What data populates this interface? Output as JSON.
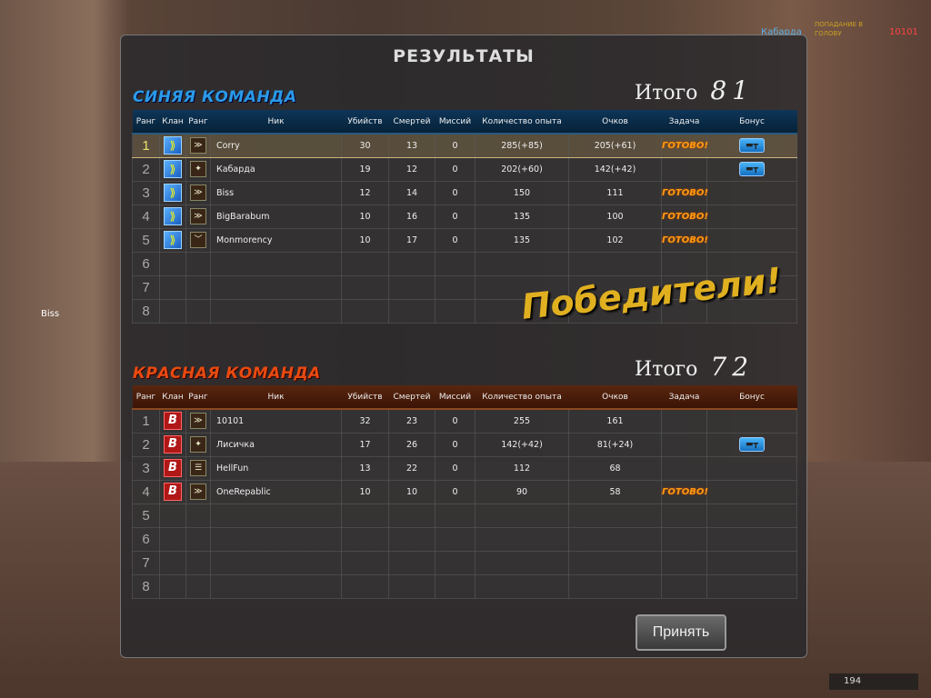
{
  "killfeed": {
    "killer": "Кабарда",
    "headshot": "ПОПАДАНИЕ В ГОЛОВУ",
    "victim": "10101"
  },
  "side_name": "Biss",
  "title": "РЕЗУЛЬТАТЫ",
  "columns": [
    "Ранг",
    "Клан",
    "Ранг",
    "Ник",
    "Убийств",
    "Смертей",
    "Миссий",
    "Количество опыта",
    "Очков",
    "Задача",
    "Бонус"
  ],
  "blue": {
    "name": "СИНЯЯ КОМАНДА",
    "total_label": "Итого",
    "total": "81",
    "color": "#2a9ae8",
    "rows": [
      {
        "n": "1",
        "rank": "≫",
        "nick": "Corry",
        "kills": "30",
        "deaths": "13",
        "missions": "0",
        "exp": "285(+85)",
        "score": "205(+61)",
        "task": "ГОТОВО!",
        "bonus": true
      },
      {
        "n": "2",
        "rank": "✦",
        "nick": "Кабарда",
        "kills": "19",
        "deaths": "12",
        "missions": "0",
        "exp": "202(+60)",
        "score": "142(+42)",
        "task": "",
        "bonus": true
      },
      {
        "n": "3",
        "rank": "≫",
        "nick": "Biss",
        "kills": "12",
        "deaths": "14",
        "missions": "0",
        "exp": "150",
        "score": "111",
        "task": "ГОТОВО!",
        "bonus": false
      },
      {
        "n": "4",
        "rank": "≫",
        "nick": "BigBarabum",
        "kills": "10",
        "deaths": "16",
        "missions": "0",
        "exp": "135",
        "score": "100",
        "task": "ГОТОВО!",
        "bonus": false
      },
      {
        "n": "5",
        "rank": "﹀",
        "nick": "Monmorency",
        "kills": "10",
        "deaths": "17",
        "missions": "0",
        "exp": "135",
        "score": "102",
        "task": "ГОТОВО!",
        "bonus": false
      },
      {
        "n": "6"
      },
      {
        "n": "7"
      },
      {
        "n": "8"
      }
    ]
  },
  "red": {
    "name": "КРАСНАЯ КОМАНДА",
    "total_label": "Итого",
    "total": "72",
    "color": "#e84a10",
    "rows": [
      {
        "n": "1",
        "rank": "≫",
        "nick": "10101",
        "kills": "32",
        "deaths": "23",
        "missions": "0",
        "exp": "255",
        "score": "161",
        "task": "",
        "bonus": false
      },
      {
        "n": "2",
        "rank": "✦",
        "nick": "Лисичка",
        "kills": "17",
        "deaths": "26",
        "missions": "0",
        "exp": "142(+42)",
        "score": "81(+24)",
        "task": "",
        "bonus": true
      },
      {
        "n": "3",
        "rank": "☰",
        "nick": "HellFun",
        "kills": "13",
        "deaths": "22",
        "missions": "0",
        "exp": "112",
        "score": "68",
        "task": "",
        "bonus": false
      },
      {
        "n": "4",
        "rank": "≫",
        "nick": "OneRepablic",
        "kills": "10",
        "deaths": "10",
        "missions": "0",
        "exp": "90",
        "score": "58",
        "task": "ГОТОВО!",
        "bonus": false
      },
      {
        "n": "5"
      },
      {
        "n": "6"
      },
      {
        "n": "7"
      },
      {
        "n": "8"
      }
    ]
  },
  "winner_text": "Победители!",
  "accept_label": "Принять",
  "ammo": "194"
}
